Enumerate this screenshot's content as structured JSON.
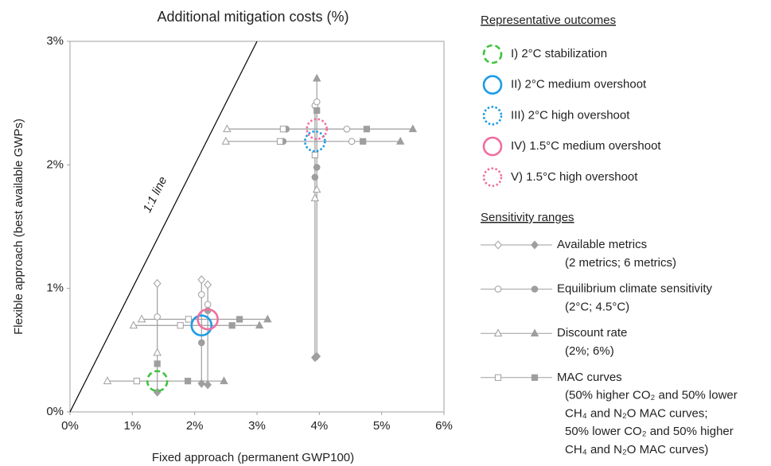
{
  "chart_data": {
    "type": "scatter",
    "title": "Additional mitigation costs (%)",
    "x_label": "Fixed approach (permanent GWP100)",
    "y_label": "Flexible approach (best available GWPs)",
    "xlim": [
      0,
      6
    ],
    "ylim": [
      0,
      3
    ],
    "xticks": [
      {
        "value": 0,
        "label": "0%"
      },
      {
        "value": 1,
        "label": "1%"
      },
      {
        "value": 2,
        "label": "2%"
      },
      {
        "value": 3,
        "label": "3%"
      },
      {
        "value": 4,
        "label": "4%"
      },
      {
        "value": 5,
        "label": "5%"
      },
      {
        "value": 6,
        "label": "6%"
      }
    ],
    "yticks": [
      {
        "value": 0,
        "label": "0%"
      },
      {
        "value": 1,
        "label": "1%"
      },
      {
        "value": 2,
        "label": "2%"
      },
      {
        "value": 3,
        "label": "3%"
      }
    ],
    "grid": false,
    "one_to_one": {
      "label": "1:1 line",
      "x": [
        0,
        3
      ],
      "y": [
        0,
        3
      ]
    },
    "range_color": "#9e9e9e",
    "outcomes_title": "Representative outcomes",
    "ranges_title": "Sensitivity ranges",
    "sensitivity_ranges": [
      {
        "marker": "diamond",
        "label": [
          "Available metrics",
          "(2 metrics; 6 metrics)"
        ]
      },
      {
        "marker": "circle",
        "label": [
          "Equilibrium climate sensitivity",
          "(2°C; 4.5°C)"
        ]
      },
      {
        "marker": "triangle",
        "label": [
          "Discount rate",
          "(2%; 6%)"
        ]
      },
      {
        "marker": "square",
        "label": [
          "MAC curves",
          "(50% higher CO₂ and 50% lower",
          "CH₄ and N₂O MAC curves;",
          "50% lower CO₂ and 50% higher",
          "CH₄ and N₂O MAC curves)"
        ]
      }
    ],
    "series": [
      {
        "name": "I) 2°C stabilization",
        "color": "#3fc43f",
        "dash": "dashed",
        "x": 1.4,
        "y": 0.25,
        "points": [
          {
            "range": 0,
            "filled": false,
            "x": 1.4,
            "y": 1.04
          },
          {
            "range": 0,
            "filled": true,
            "x": 1.4,
            "y": 0.16
          },
          {
            "range": 1,
            "filled": false,
            "x": 1.4,
            "y": 0.77
          },
          {
            "range": 2,
            "filled": false,
            "x": 0.6,
            "y": 0.25
          },
          {
            "range": 2,
            "filled": false,
            "x": 1.4,
            "y": 0.48
          },
          {
            "range": 2,
            "filled": true,
            "x": 2.47,
            "y": 0.25
          },
          {
            "range": 3,
            "filled": false,
            "x": 1.07,
            "y": 0.25
          },
          {
            "range": 3,
            "filled": true,
            "x": 1.89,
            "y": 0.25
          },
          {
            "range": 3,
            "filled": true,
            "x": 1.4,
            "y": 0.39
          }
        ]
      },
      {
        "name": "II) 2°C medium overshoot",
        "color": "#1e9be6",
        "dash": "solid",
        "x": 2.11,
        "y": 0.7,
        "points": [
          {
            "range": 0,
            "filled": false,
            "x": 2.11,
            "y": 1.07
          },
          {
            "range": 0,
            "filled": true,
            "x": 2.11,
            "y": 0.23
          },
          {
            "range": 1,
            "filled": false,
            "x": 2.11,
            "y": 0.95
          },
          {
            "range": 1,
            "filled": true,
            "x": 2.11,
            "y": 0.56
          },
          {
            "range": 2,
            "filled": false,
            "x": 1.02,
            "y": 0.7
          },
          {
            "range": 2,
            "filled": true,
            "x": 3.04,
            "y": 0.7
          },
          {
            "range": 3,
            "filled": false,
            "x": 1.77,
            "y": 0.7
          },
          {
            "range": 3,
            "filled": true,
            "x": 2.6,
            "y": 0.7
          }
        ]
      },
      {
        "name": "III) 2°C high overshoot",
        "color": "#1e9be6",
        "dash": "dotted",
        "x": 3.93,
        "y": 2.19,
        "points": [
          {
            "range": 0,
            "filled": true,
            "x": 3.93,
            "y": 0.44
          },
          {
            "range": 1,
            "filled": false,
            "x": 3.93,
            "y": 2.48
          },
          {
            "range": 1,
            "filled": true,
            "x": 3.93,
            "y": 1.9
          },
          {
            "range": 1,
            "filled": true,
            "x": 3.42,
            "y": 2.19
          },
          {
            "range": 1,
            "filled": false,
            "x": 4.52,
            "y": 2.19
          },
          {
            "range": 2,
            "filled": false,
            "x": 2.5,
            "y": 2.19
          },
          {
            "range": 2,
            "filled": true,
            "x": 5.3,
            "y": 2.19
          },
          {
            "range": 2,
            "filled": false,
            "x": 3.93,
            "y": 1.73
          },
          {
            "range": 3,
            "filled": false,
            "x": 3.37,
            "y": 2.19
          },
          {
            "range": 3,
            "filled": true,
            "x": 4.7,
            "y": 2.19
          },
          {
            "range": 3,
            "filled": false,
            "x": 3.93,
            "y": 2.08
          }
        ]
      },
      {
        "name": "IV) 1.5°C medium overshoot",
        "color": "#f06ea0",
        "dash": "solid",
        "x": 2.21,
        "y": 0.75,
        "points": [
          {
            "range": 0,
            "filled": false,
            "x": 2.21,
            "y": 1.03
          },
          {
            "range": 0,
            "filled": true,
            "x": 2.21,
            "y": 0.22
          },
          {
            "range": 1,
            "filled": false,
            "x": 2.21,
            "y": 0.87
          },
          {
            "range": 1,
            "filled": true,
            "x": 2.21,
            "y": 0.82
          },
          {
            "range": 2,
            "filled": false,
            "x": 1.15,
            "y": 0.75
          },
          {
            "range": 2,
            "filled": true,
            "x": 3.17,
            "y": 0.75
          },
          {
            "range": 3,
            "filled": false,
            "x": 1.9,
            "y": 0.75
          },
          {
            "range": 3,
            "filled": true,
            "x": 2.72,
            "y": 0.75
          }
        ]
      },
      {
        "name": "V) 1.5°C high overshoot",
        "color": "#f06ea0",
        "dash": "dotted",
        "x": 3.96,
        "y": 2.29,
        "points": [
          {
            "range": 0,
            "filled": true,
            "x": 3.96,
            "y": 0.45
          },
          {
            "range": 1,
            "filled": false,
            "x": 3.96,
            "y": 2.51
          },
          {
            "range": 1,
            "filled": true,
            "x": 3.96,
            "y": 1.98
          },
          {
            "range": 1,
            "filled": true,
            "x": 3.47,
            "y": 2.29
          },
          {
            "range": 1,
            "filled": false,
            "x": 4.44,
            "y": 2.29
          },
          {
            "range": 2,
            "filled": false,
            "x": 2.52,
            "y": 2.29
          },
          {
            "range": 2,
            "filled": true,
            "x": 5.5,
            "y": 2.29
          },
          {
            "range": 2,
            "filled": true,
            "x": 3.96,
            "y": 2.7
          },
          {
            "range": 2,
            "filled": false,
            "x": 3.96,
            "y": 1.8
          },
          {
            "range": 3,
            "filled": false,
            "x": 3.42,
            "y": 2.29
          },
          {
            "range": 3,
            "filled": true,
            "x": 4.76,
            "y": 2.29
          },
          {
            "range": 3,
            "filled": true,
            "x": 3.96,
            "y": 2.44
          }
        ]
      }
    ]
  }
}
